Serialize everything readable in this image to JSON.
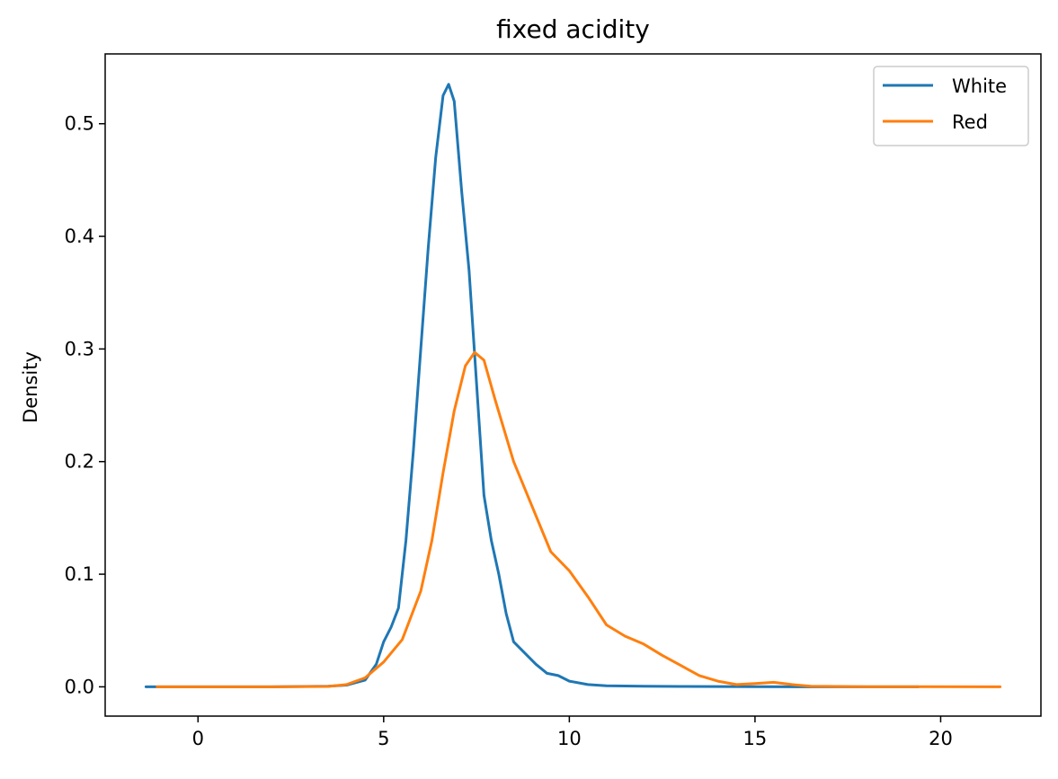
{
  "chart_data": {
    "type": "line",
    "title": "fixed acidity",
    "xlabel": "",
    "ylabel": "Density",
    "xlim": [
      -2.5,
      22.7
    ],
    "ylim": [
      -0.026,
      0.562
    ],
    "xticks": [
      0,
      5,
      10,
      15,
      20
    ],
    "xtick_labels": [
      "0",
      "5",
      "10",
      "15",
      "20"
    ],
    "yticks": [
      0.0,
      0.1,
      0.2,
      0.3,
      0.4,
      0.5
    ],
    "ytick_labels": [
      "0.0",
      "0.1",
      "0.2",
      "0.3",
      "0.4",
      "0.5"
    ],
    "grid": false,
    "legend": {
      "position": "top-right",
      "entries": [
        "White",
        "Red"
      ]
    },
    "series": [
      {
        "name": "White",
        "color": "#1f77b4",
        "points": [
          [
            -1.4,
            0.0
          ],
          [
            2.0,
            0.0
          ],
          [
            3.5,
            0.0005
          ],
          [
            4.0,
            0.0015
          ],
          [
            4.5,
            0.006
          ],
          [
            4.8,
            0.02
          ],
          [
            5.0,
            0.04
          ],
          [
            5.2,
            0.053
          ],
          [
            5.4,
            0.07
          ],
          [
            5.6,
            0.13
          ],
          [
            5.8,
            0.21
          ],
          [
            6.0,
            0.3
          ],
          [
            6.2,
            0.39
          ],
          [
            6.4,
            0.47
          ],
          [
            6.6,
            0.525
          ],
          [
            6.75,
            0.535
          ],
          [
            6.9,
            0.52
          ],
          [
            7.1,
            0.44
          ],
          [
            7.3,
            0.37
          ],
          [
            7.5,
            0.27
          ],
          [
            7.7,
            0.17
          ],
          [
            7.9,
            0.13
          ],
          [
            8.1,
            0.1
          ],
          [
            8.3,
            0.065
          ],
          [
            8.5,
            0.04
          ],
          [
            8.8,
            0.03
          ],
          [
            9.1,
            0.02
          ],
          [
            9.4,
            0.012
          ],
          [
            9.7,
            0.01
          ],
          [
            10.0,
            0.005
          ],
          [
            10.5,
            0.002
          ],
          [
            11.0,
            0.001
          ],
          [
            12.0,
            0.0005
          ],
          [
            13.0,
            0.0003
          ],
          [
            15.0,
            0.0001
          ],
          [
            19.4,
            0.0
          ]
        ]
      },
      {
        "name": "Red",
        "color": "#ff7f0e",
        "points": [
          [
            -1.1,
            0.0
          ],
          [
            2.0,
            0.0
          ],
          [
            3.5,
            0.0003
          ],
          [
            4.0,
            0.002
          ],
          [
            4.5,
            0.008
          ],
          [
            5.0,
            0.022
          ],
          [
            5.5,
            0.042
          ],
          [
            6.0,
            0.085
          ],
          [
            6.3,
            0.13
          ],
          [
            6.6,
            0.19
          ],
          [
            6.9,
            0.245
          ],
          [
            7.2,
            0.285
          ],
          [
            7.45,
            0.297
          ],
          [
            7.7,
            0.29
          ],
          [
            8.0,
            0.255
          ],
          [
            8.5,
            0.2
          ],
          [
            9.0,
            0.16
          ],
          [
            9.5,
            0.12
          ],
          [
            10.0,
            0.103
          ],
          [
            10.5,
            0.08
          ],
          [
            11.0,
            0.055
          ],
          [
            11.5,
            0.045
          ],
          [
            12.0,
            0.038
          ],
          [
            12.5,
            0.028
          ],
          [
            13.0,
            0.019
          ],
          [
            13.5,
            0.01
          ],
          [
            14.0,
            0.005
          ],
          [
            14.5,
            0.002
          ],
          [
            15.0,
            0.003
          ],
          [
            15.5,
            0.004
          ],
          [
            16.0,
            0.002
          ],
          [
            16.5,
            0.0005
          ],
          [
            18.0,
            0.0002
          ],
          [
            21.6,
            0.0
          ]
        ]
      }
    ]
  }
}
